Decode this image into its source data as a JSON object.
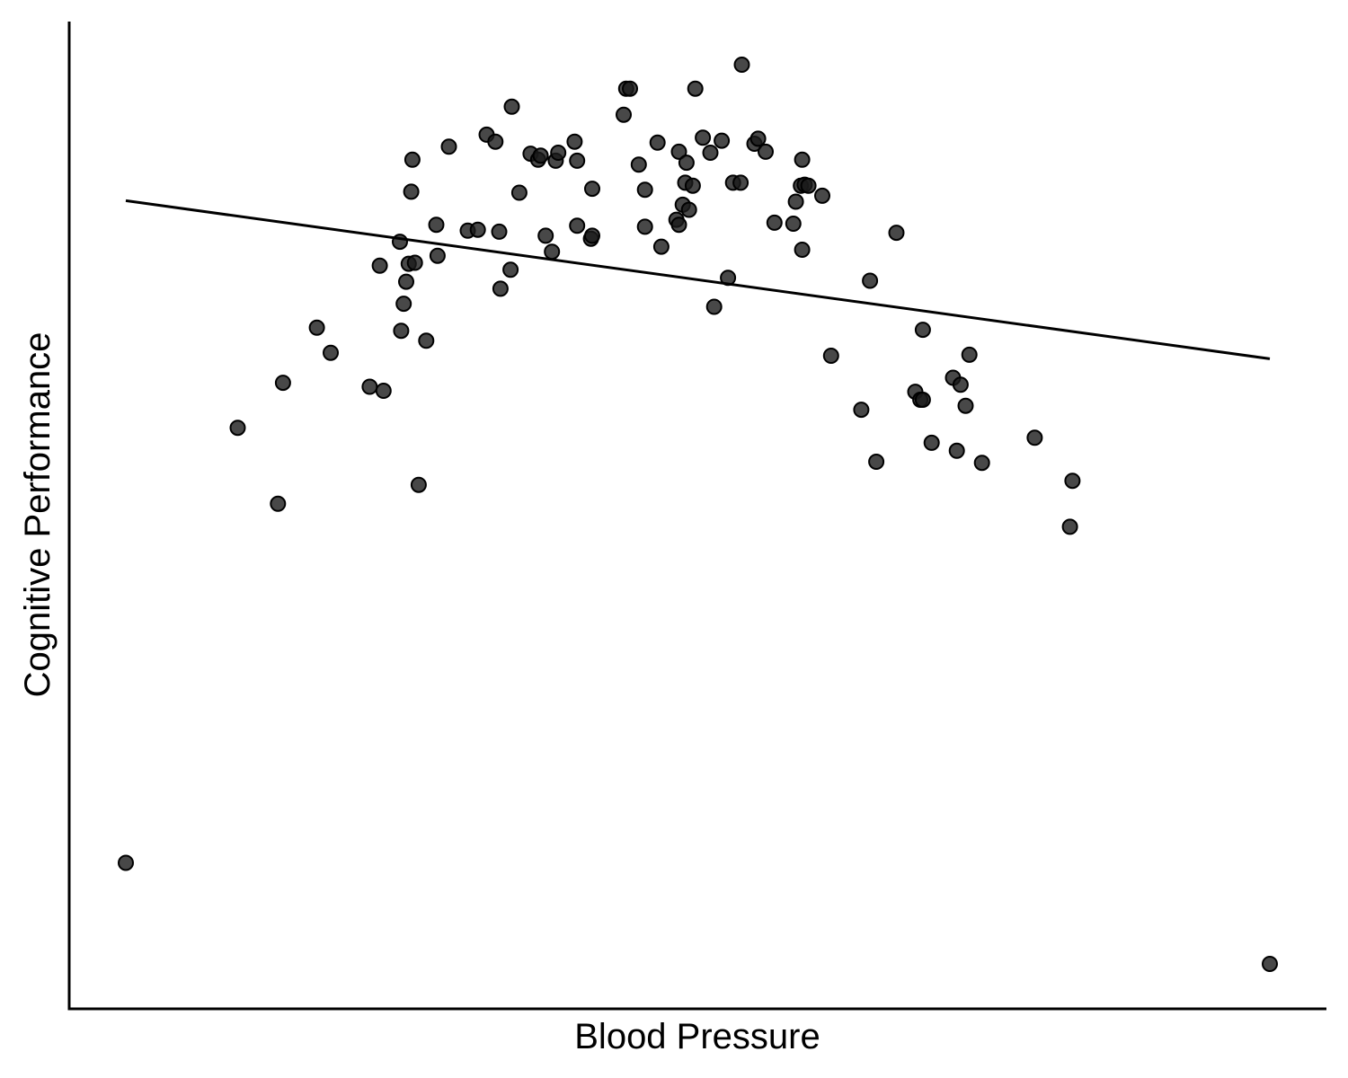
{
  "chart_data": {
    "type": "scatter",
    "title": "",
    "xlabel": "Blood Pressure",
    "ylabel": "Cognitive Performance",
    "xlim": [
      0,
      100
    ],
    "ylim": [
      0,
      100
    ],
    "grid": false,
    "legend": "none",
    "x_ticks_shown": false,
    "y_ticks_shown": false,
    "point_color": "#1a1a1a",
    "point_opacity": 0.8,
    "line_color": "#000000",
    "points": [
      [
        4.5,
        14.3
      ],
      [
        13.4,
        57.8
      ],
      [
        16.6,
        50.2
      ],
      [
        17.0,
        62.3
      ],
      [
        19.7,
        67.8
      ],
      [
        20.8,
        65.3
      ],
      [
        23.9,
        61.9
      ],
      [
        25.0,
        61.5
      ],
      [
        24.7,
        74.0
      ],
      [
        26.3,
        76.4
      ],
      [
        26.4,
        67.5
      ],
      [
        26.6,
        70.2
      ],
      [
        26.8,
        72.4
      ],
      [
        27.0,
        74.2
      ],
      [
        27.2,
        81.4
      ],
      [
        27.3,
        84.6
      ],
      [
        27.5,
        74.3
      ],
      [
        27.8,
        52.1
      ],
      [
        28.4,
        66.5
      ],
      [
        29.2,
        78.1
      ],
      [
        29.3,
        75.0
      ],
      [
        30.2,
        85.9
      ],
      [
        31.7,
        77.5
      ],
      [
        32.5,
        77.6
      ],
      [
        33.2,
        87.1
      ],
      [
        33.9,
        86.4
      ],
      [
        34.2,
        77.4
      ],
      [
        34.3,
        71.7
      ],
      [
        35.1,
        73.6
      ],
      [
        35.2,
        89.9
      ],
      [
        35.8,
        81.3
      ],
      [
        36.7,
        85.2
      ],
      [
        37.3,
        84.6
      ],
      [
        37.5,
        85.0
      ],
      [
        37.9,
        77.0
      ],
      [
        38.4,
        75.4
      ],
      [
        38.7,
        84.5
      ],
      [
        38.9,
        85.3
      ],
      [
        40.2,
        86.4
      ],
      [
        40.4,
        84.5
      ],
      [
        40.4,
        78.0
      ],
      [
        41.5,
        76.7
      ],
      [
        41.6,
        77.0
      ],
      [
        41.6,
        81.7
      ],
      [
        44.1,
        89.1
      ],
      [
        44.3,
        91.7
      ],
      [
        44.6,
        91.7
      ],
      [
        45.3,
        84.1
      ],
      [
        45.8,
        81.6
      ],
      [
        45.8,
        77.9
      ],
      [
        46.8,
        86.3
      ],
      [
        47.1,
        75.9
      ],
      [
        48.3,
        78.6
      ],
      [
        48.5,
        78.1
      ],
      [
        48.5,
        85.4
      ],
      [
        48.8,
        80.1
      ],
      [
        49.0,
        82.3
      ],
      [
        49.1,
        84.3
      ],
      [
        49.3,
        79.6
      ],
      [
        49.6,
        82.0
      ],
      [
        49.8,
        91.7
      ],
      [
        50.4,
        86.8
      ],
      [
        51.0,
        85.3
      ],
      [
        51.3,
        69.9
      ],
      [
        51.9,
        86.5
      ],
      [
        52.4,
        72.8
      ],
      [
        52.8,
        82.3
      ],
      [
        53.4,
        82.3
      ],
      [
        53.5,
        94.1
      ],
      [
        54.5,
        86.2
      ],
      [
        54.8,
        86.7
      ],
      [
        55.4,
        85.4
      ],
      [
        56.1,
        78.3
      ],
      [
        57.6,
        78.2
      ],
      [
        57.8,
        80.4
      ],
      [
        58.2,
        82.0
      ],
      [
        58.3,
        84.6
      ],
      [
        58.5,
        82.1
      ],
      [
        58.8,
        82.0
      ],
      [
        58.3,
        75.6
      ],
      [
        59.9,
        81.0
      ],
      [
        60.6,
        65.0
      ],
      [
        63.0,
        59.6
      ],
      [
        63.7,
        72.5
      ],
      [
        64.2,
        54.4
      ],
      [
        65.8,
        77.3
      ],
      [
        67.3,
        61.4
      ],
      [
        67.7,
        60.6
      ],
      [
        67.9,
        60.6
      ],
      [
        67.9,
        67.6
      ],
      [
        68.6,
        56.3
      ],
      [
        70.3,
        62.8
      ],
      [
        70.6,
        55.5
      ],
      [
        70.9,
        62.1
      ],
      [
        71.3,
        60.0
      ],
      [
        71.6,
        65.1
      ],
      [
        72.6,
        54.3
      ],
      [
        76.8,
        56.8
      ],
      [
        79.6,
        47.9
      ],
      [
        79.8,
        52.5
      ],
      [
        95.5,
        4.2
      ]
    ],
    "trend_line": {
      "x": [
        4.5,
        95.5
      ],
      "y": [
        80.5,
        64.7
      ]
    }
  }
}
